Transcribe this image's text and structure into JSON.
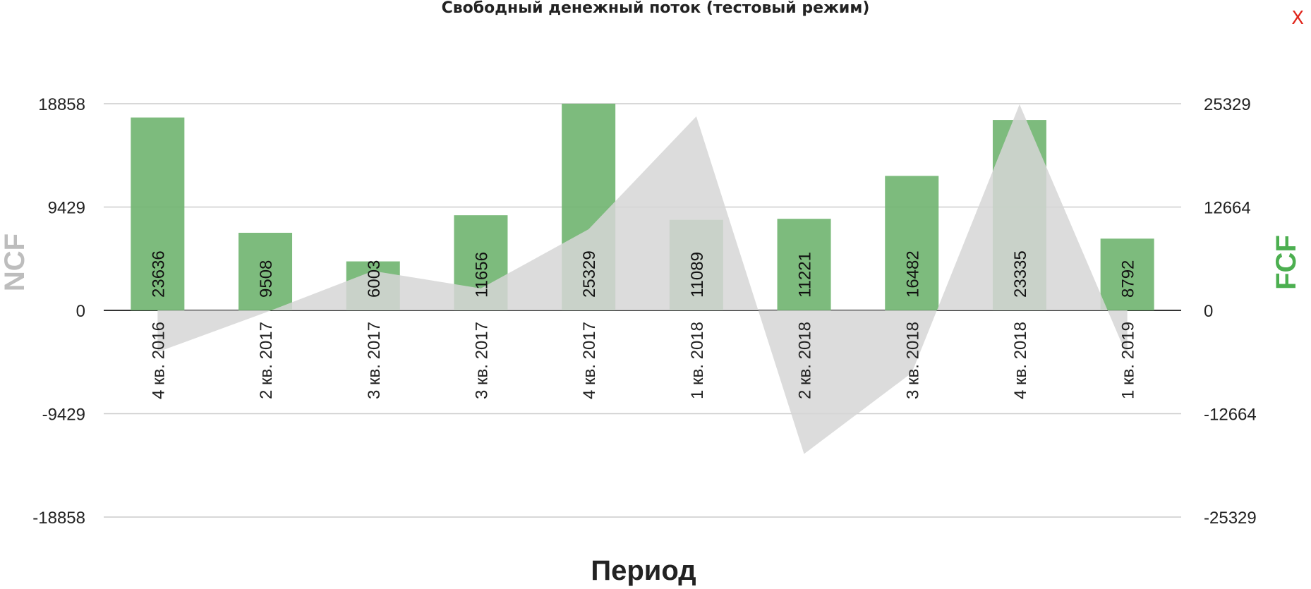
{
  "header": {
    "title": "Свободный денежный поток (тестовый режим)",
    "close_label": "X"
  },
  "colors": {
    "bar": "#6fb46f",
    "area": "#d6d6d6",
    "ncf_title": "#bdbdbd",
    "fcf_title": "#4caf50",
    "close": "#e0251b",
    "grid": "#cccccc"
  },
  "chart_data": {
    "type": "bar",
    "title": "Свободный денежный поток (тестовый режим)",
    "xlabel": "Период",
    "ylabel_left": "NCF",
    "ylabel_right": "FCF",
    "categories": [
      "4 кв. 2016",
      "2 кв. 2017",
      "3 кв. 2017",
      "3 кв. 2017",
      "4 кв. 2017",
      "1 кв. 2018",
      "2 кв. 2018",
      "3 кв. 2018",
      "4 кв. 2018",
      "1 кв. 2019"
    ],
    "left_axis": {
      "ylim": [
        -18858,
        18858
      ],
      "ticks": [
        "18858",
        "9429",
        "0",
        "-9429",
        "-18858"
      ]
    },
    "right_axis": {
      "ylim": [
        -25329,
        25329
      ],
      "ticks": [
        "25329",
        "12664",
        "0",
        "-12664",
        "-25329"
      ]
    },
    "series": [
      {
        "name": "FCF",
        "type": "bar",
        "axis": "right",
        "values": [
          23636,
          9508,
          6003,
          11656,
          25329,
          11089,
          11221,
          16482,
          23335,
          8792
        ],
        "labels": [
          "23636",
          "9508",
          "6003",
          "11656",
          "25329",
          "11089",
          "11221",
          "16482",
          "23335",
          "8792"
        ]
      },
      {
        "name": "NCF",
        "type": "area",
        "axis": "left",
        "values": [
          -3800,
          -200,
          3600,
          2000,
          7400,
          17700,
          -13100,
          -5700,
          18800,
          -4200
        ]
      }
    ],
    "grid": true
  }
}
